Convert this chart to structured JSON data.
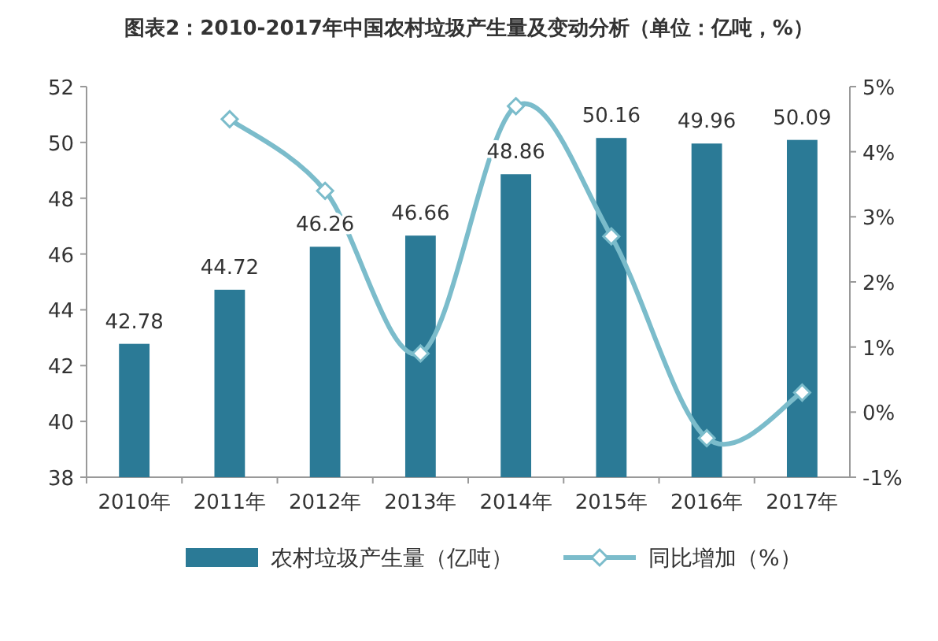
{
  "chart_data": {
    "type": "bar",
    "title": "图表2：2010-2017年中国农村垃圾产生量及变动分析（单位：亿吨，%）",
    "categories": [
      "2010年",
      "2011年",
      "2012年",
      "2013年",
      "2014年",
      "2015年",
      "2016年",
      "2017年"
    ],
    "series": [
      {
        "name": "农村垃圾产生量（亿吨）",
        "type": "bar",
        "color": "#2b7a96",
        "values": [
          42.78,
          44.72,
          46.26,
          46.66,
          48.86,
          50.16,
          49.96,
          50.09
        ],
        "value_labels": [
          "42.78",
          "44.72",
          "46.26",
          "46.66",
          "48.86",
          "50.16",
          "49.96",
          "50.09"
        ]
      },
      {
        "name": "同比增加（%）",
        "type": "line",
        "axis": "y2",
        "color": "#7bbccb",
        "marker": "diamond",
        "values": [
          null,
          4.5,
          3.4,
          0.9,
          4.7,
          2.7,
          -0.4,
          0.3
        ]
      }
    ],
    "ylim": [
      38,
      52
    ],
    "yticks": [
      38,
      40,
      42,
      44,
      46,
      48,
      50,
      52
    ],
    "y2lim": [
      -1,
      5
    ],
    "y2ticks": [
      {
        "value": -1,
        "label": "-1%"
      },
      {
        "value": 0,
        "label": "0%"
      },
      {
        "value": 1,
        "label": "1%"
      },
      {
        "value": 2,
        "label": "2%"
      },
      {
        "value": 3,
        "label": "3%"
      },
      {
        "value": 4,
        "label": "4%"
      },
      {
        "value": 5,
        "label": "5%"
      }
    ],
    "legend": "bottom",
    "grid": false
  }
}
